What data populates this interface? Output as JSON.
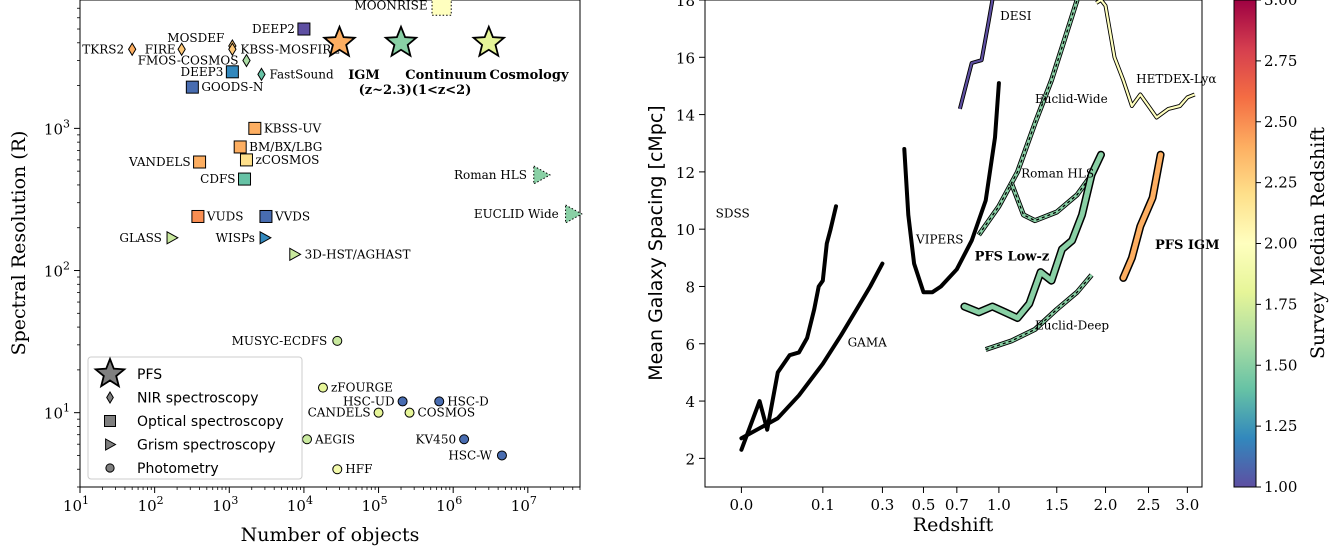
{
  "chart_data": [
    {
      "type": "scatter",
      "xlabel": "Number of objects",
      "ylabel": "Spectral Resolution (R)",
      "xscale": "log",
      "yscale": "log",
      "xlim": [
        10,
        50000000
      ],
      "ylim": [
        3,
        8000
      ],
      "xticks": [
        {
          "v": 10,
          "base": "10",
          "exp": "1"
        },
        {
          "v": 100,
          "base": "10",
          "exp": "2"
        },
        {
          "v": 1000,
          "base": "10",
          "exp": "3"
        },
        {
          "v": 10000,
          "base": "10",
          "exp": "4"
        },
        {
          "v": 100000,
          "base": "10",
          "exp": "5"
        },
        {
          "v": 1000000,
          "base": "10",
          "exp": "6"
        },
        {
          "v": 10000000,
          "base": "10",
          "exp": "7"
        }
      ],
      "yticks": [
        {
          "v": 10,
          "base": "10",
          "exp": "1"
        },
        {
          "v": 100,
          "base": "10",
          "exp": "2"
        },
        {
          "v": 1000,
          "base": "10",
          "exp": "3"
        }
      ],
      "colormap": {
        "name": "Spectral_r",
        "label": "Survey Median Redshift",
        "min": 1.0,
        "max": 3.0,
        "ticks": [
          "1.00",
          "1.25",
          "1.50",
          "1.75",
          "2.00",
          "2.25",
          "2.50",
          "2.75",
          "3.00"
        ]
      },
      "legend": {
        "position": "bottom-left",
        "entries": [
          {
            "marker": "star",
            "label": "PFS"
          },
          {
            "marker": "diamond",
            "label": "NIR spectroscopy"
          },
          {
            "marker": "square",
            "label": "Optical spectroscopy"
          },
          {
            "marker": "triangle",
            "label": "Grism spectroscopy"
          },
          {
            "marker": "circle",
            "label": "Photometry"
          }
        ]
      },
      "points": [
        {
          "label": "TKRS2",
          "n": 50,
          "r": 3600,
          "marker": "diamond",
          "z": 2.4,
          "anchor": "end",
          "dx": -8,
          "dy": 4
        },
        {
          "label": "FIRE",
          "n": 230,
          "r": 3600,
          "marker": "diamond",
          "z": 2.3,
          "anchor": "end",
          "dx": -6,
          "dy": 4
        },
        {
          "label": "MOSDEF",
          "n": 1100,
          "r": 3800,
          "marker": "diamond",
          "z": 2.3,
          "anchor": "end",
          "dx": -8,
          "dy": -4
        },
        {
          "label": "FMOS-COSMOS",
          "n": 1700,
          "r": 3000,
          "marker": "diamond",
          "z": 1.6,
          "anchor": "end",
          "dx": -8,
          "dy": 4
        },
        {
          "label": "KBSS-MOSFIRE",
          "n": 1100,
          "r": 3600,
          "marker": "diamond",
          "z": 2.3,
          "anchor": "start",
          "dx": 8,
          "dy": 4
        },
        {
          "label": "FastSound",
          "n": 2700,
          "r": 2400,
          "marker": "diamond",
          "z": 1.4,
          "anchor": "start",
          "dx": 8,
          "dy": 4
        },
        {
          "label": "DEEP2",
          "n": 10000,
          "r": 5000,
          "marker": "square",
          "z": 1.0,
          "anchor": "end",
          "dx": -9,
          "dy": 4
        },
        {
          "label": "DEEP3",
          "n": 1100,
          "r": 2500,
          "marker": "square",
          "z": 1.2,
          "anchor": "end",
          "dx": -9,
          "dy": 4
        },
        {
          "label": "GOODS-N",
          "n": 320,
          "r": 1950,
          "marker": "square",
          "z": 1.1,
          "anchor": "start",
          "dx": 9,
          "dy": 4
        },
        {
          "label": "KBSS-UV",
          "n": 2200,
          "r": 1000,
          "marker": "square",
          "z": 2.4,
          "anchor": "start",
          "dx": 9,
          "dy": 4
        },
        {
          "label": "BM/BX/LBG",
          "n": 1400,
          "r": 740,
          "marker": "square",
          "z": 2.4,
          "anchor": "start",
          "dx": 9,
          "dy": 4
        },
        {
          "label": "zCOSMOS",
          "n": 1700,
          "r": 600,
          "marker": "square",
          "z": 2.2,
          "anchor": "start",
          "dx": 9,
          "dy": 4
        },
        {
          "label": "VANDELS",
          "n": 400,
          "r": 580,
          "marker": "square",
          "z": 2.4,
          "anchor": "end",
          "dx": -9,
          "dy": 4
        },
        {
          "label": "CDFS",
          "n": 1600,
          "r": 440,
          "marker": "square",
          "z": 1.4,
          "anchor": "end",
          "dx": -9,
          "dy": 4
        },
        {
          "label": "VUDS",
          "n": 380,
          "r": 240,
          "marker": "square",
          "z": 2.5,
          "anchor": "start",
          "dx": 9,
          "dy": 4
        },
        {
          "label": "VVDS",
          "n": 3100,
          "r": 240,
          "marker": "square",
          "z": 1.1,
          "anchor": "start",
          "dx": 9,
          "dy": 4
        },
        {
          "label": "GLASS",
          "n": 170,
          "r": 170,
          "marker": "triangle",
          "z": 1.7,
          "anchor": "end",
          "dx": -10,
          "dy": 4
        },
        {
          "label": "WISPs",
          "n": 3000,
          "r": 170,
          "marker": "triangle",
          "z": 1.2,
          "anchor": "end",
          "dx": -10,
          "dy": 4
        },
        {
          "label": "3D-HST/AGHAST",
          "n": 7500,
          "r": 130,
          "marker": "triangle",
          "z": 1.7,
          "anchor": "start",
          "dx": 10,
          "dy": 4
        },
        {
          "label": "MUSYC-ECDFS",
          "n": 28000,
          "r": 32,
          "marker": "circle",
          "z": 1.7,
          "anchor": "end",
          "dx": -10,
          "dy": 4
        },
        {
          "label": "zFOURGE",
          "n": 18000,
          "r": 15,
          "marker": "circle",
          "z": 1.8,
          "anchor": "start",
          "dx": 8,
          "dy": 4
        },
        {
          "label": "HSC-UD",
          "n": 210000,
          "r": 12,
          "marker": "circle",
          "z": 1.1,
          "anchor": "end",
          "dx": -8,
          "dy": 4
        },
        {
          "label": "HSC-D",
          "n": 650000,
          "r": 12,
          "marker": "circle",
          "z": 1.1,
          "anchor": "start",
          "dx": 8,
          "dy": 4
        },
        {
          "label": "CANDELS",
          "n": 100000,
          "r": 10,
          "marker": "circle",
          "z": 1.8,
          "anchor": "end",
          "dx": -8,
          "dy": 4
        },
        {
          "label": "COSMOS",
          "n": 260000,
          "r": 10,
          "marker": "circle",
          "z": 1.8,
          "anchor": "start",
          "dx": 8,
          "dy": 4
        },
        {
          "label": "AEGIS",
          "n": 11000,
          "r": 6.5,
          "marker": "circle",
          "z": 1.7,
          "anchor": "start",
          "dx": 8,
          "dy": 4
        },
        {
          "label": "KV450",
          "n": 1400000,
          "r": 6.5,
          "marker": "circle",
          "z": 1.1,
          "anchor": "end",
          "dx": -8,
          "dy": 4
        },
        {
          "label": "HSC-W",
          "n": 4500000,
          "r": 5.0,
          "marker": "circle",
          "z": 1.1,
          "anchor": "end",
          "dx": -10,
          "dy": 4
        },
        {
          "label": "HFF",
          "n": 28000,
          "r": 4.0,
          "marker": "circle",
          "z": 1.9,
          "anchor": "start",
          "dx": 8,
          "dy": 4
        },
        {
          "label": "MOONRISE",
          "n": 700000,
          "r": 7300,
          "marker": "square-dotted",
          "z": 2.0,
          "anchor": "end",
          "dx": -14,
          "dy": 4
        },
        {
          "label": "Roman HLS",
          "n": 15000000,
          "r": 470,
          "marker": "triangle-dotted",
          "z": 1.5,
          "anchor": "end",
          "dx": -14,
          "dy": 4
        },
        {
          "label": "EUCLID Wide",
          "n": 40000000,
          "r": 250,
          "marker": "triangle-dotted",
          "z": 1.5,
          "anchor": "end",
          "dx": -14,
          "dy": 4
        }
      ],
      "pfs": [
        {
          "n": 30000,
          "r": 4000,
          "z": 2.4
        },
        {
          "n": 200000,
          "r": 4000,
          "z": 1.5
        },
        {
          "n": 3000000,
          "r": 4000,
          "z": 1.8
        }
      ],
      "pfs_labels": [
        "IGM",
        "(z~2.3)(1<z<2)",
        "Continuum",
        "Cosmology"
      ]
    },
    {
      "type": "line",
      "xlabel": "Redshift",
      "ylabel": "Mean Galaxy Spacing [cMpc]",
      "xscale": "sqrt",
      "xlim": [
        -0.02,
        3.2
      ],
      "ylim": [
        1,
        18
      ],
      "xticks": [
        "0.0",
        "0.1",
        "0.3",
        "0.5",
        "0.7",
        "1.0",
        "1.5",
        "2.0",
        "2.5",
        "3.0"
      ],
      "xtick_values": [
        0.0,
        0.1,
        0.3,
        0.5,
        0.7,
        1.0,
        1.5,
        2.0,
        2.5,
        3.0
      ],
      "yticks": [
        "2",
        "4",
        "6",
        "8",
        "10",
        "12",
        "14",
        "16",
        "18"
      ],
      "ytick_values": [
        2,
        4,
        6,
        8,
        10,
        12,
        14,
        16,
        18
      ],
      "series": [
        {
          "name": "SDSS",
          "style": "black",
          "points": [
            [
              0.0,
              2.3
            ],
            [
              0.005,
              4.0
            ],
            [
              0.01,
              3.0
            ],
            [
              0.02,
              5.0
            ],
            [
              0.035,
              5.6
            ],
            [
              0.05,
              5.7
            ],
            [
              0.065,
              6.2
            ],
            [
              0.08,
              7.2
            ],
            [
              0.09,
              8.0
            ],
            [
              0.1,
              8.2
            ],
            [
              0.11,
              9.5
            ],
            [
              0.12,
              10.0
            ],
            [
              0.135,
              10.8
            ]
          ]
        },
        {
          "name": "GAMA",
          "style": "black",
          "points": [
            [
              0.0,
              2.7
            ],
            [
              0.02,
              3.4
            ],
            [
              0.05,
              4.2
            ],
            [
              0.1,
              5.3
            ],
            [
              0.15,
              6.3
            ],
            [
              0.2,
              7.2
            ],
            [
              0.25,
              8.0
            ],
            [
              0.3,
              8.8
            ]
          ]
        },
        {
          "name": "VIPERS",
          "style": "black",
          "points": [
            [
              0.4,
              12.8
            ],
            [
              0.42,
              10.5
            ],
            [
              0.45,
              8.8
            ],
            [
              0.5,
              7.8
            ],
            [
              0.55,
              7.8
            ],
            [
              0.6,
              8.0
            ],
            [
              0.7,
              8.6
            ],
            [
              0.8,
              9.6
            ],
            [
              0.9,
              11.0
            ],
            [
              0.97,
              13.2
            ],
            [
              1.0,
              15.1
            ]
          ]
        },
        {
          "name": "DESI",
          "style": "color",
          "z": 1.0,
          "points": [
            [
              0.72,
              14.2
            ],
            [
              0.8,
              15.8
            ],
            [
              0.87,
              15.9
            ],
            [
              0.92,
              17.2
            ],
            [
              0.95,
              18.0
            ]
          ]
        },
        {
          "name": "HETDEX-Lyα",
          "style": "color",
          "z": 2.0,
          "points": [
            [
              1.9,
              17.9
            ],
            [
              1.95,
              18.0
            ],
            [
              2.0,
              17.8
            ],
            [
              2.1,
              16.0
            ],
            [
              2.2,
              15.2
            ],
            [
              2.3,
              14.3
            ],
            [
              2.4,
              14.7
            ],
            [
              2.5,
              14.3
            ],
            [
              2.6,
              13.9
            ],
            [
              2.75,
              14.2
            ],
            [
              2.9,
              14.3
            ],
            [
              3.0,
              14.6
            ],
            [
              3.1,
              14.7
            ]
          ]
        },
        {
          "name": "Euclid-Wide",
          "style": "dashed",
          "z": 1.5,
          "points": [
            [
              0.85,
              9.8
            ],
            [
              1.0,
              10.8
            ],
            [
              1.15,
              12.0
            ],
            [
              1.3,
              13.7
            ],
            [
              1.45,
              15.2
            ],
            [
              1.6,
              16.9
            ],
            [
              1.7,
              18.0
            ]
          ]
        },
        {
          "name": "Roman HLS",
          "style": "dashed",
          "z": 1.5,
          "points": [
            [
              1.1,
              11.6
            ],
            [
              1.2,
              10.5
            ],
            [
              1.3,
              10.3
            ],
            [
              1.5,
              10.6
            ],
            [
              1.7,
              11.2
            ],
            [
              1.85,
              11.9
            ]
          ]
        },
        {
          "name": "Euclid-Deep",
          "style": "dashed",
          "z": 1.5,
          "points": [
            [
              0.9,
              5.8
            ],
            [
              1.1,
              6.1
            ],
            [
              1.3,
              6.5
            ],
            [
              1.5,
              7.2
            ],
            [
              1.7,
              7.8
            ],
            [
              1.85,
              8.4
            ]
          ]
        },
        {
          "name": "PFS Low-z",
          "style": "thick",
          "z": 1.5,
          "points": [
            [
              0.75,
              7.3
            ],
            [
              0.85,
              7.1
            ],
            [
              0.95,
              7.3
            ],
            [
              1.05,
              7.1
            ],
            [
              1.15,
              6.9
            ],
            [
              1.25,
              7.4
            ],
            [
              1.35,
              8.5
            ],
            [
              1.45,
              8.2
            ],
            [
              1.55,
              9.3
            ],
            [
              1.65,
              9.6
            ],
            [
              1.75,
              10.5
            ],
            [
              1.85,
              11.9
            ],
            [
              1.95,
              12.6
            ]
          ]
        },
        {
          "name": "PFS IGM",
          "style": "thick",
          "z": 2.4,
          "points": [
            [
              2.2,
              8.3
            ],
            [
              2.3,
              9.0
            ],
            [
              2.4,
              10.1
            ],
            [
              2.55,
              11.1
            ],
            [
              2.65,
              12.6
            ]
          ]
        }
      ],
      "line_labels": [
        {
          "text": "SDSS",
          "x": -0.01,
          "y": 10.4,
          "anchor": "start",
          "bold": false
        },
        {
          "text": "GAMA",
          "x": 0.17,
          "y": 5.9,
          "anchor": "start",
          "bold": false
        },
        {
          "text": "VIPERS",
          "x": 0.46,
          "y": 9.5,
          "anchor": "start",
          "bold": false
        },
        {
          "text": "DESI",
          "x": 1.01,
          "y": 17.3,
          "anchor": "start",
          "bold": false
        },
        {
          "text": "Euclid-Wide",
          "x": 1.3,
          "y": 14.4,
          "anchor": "start",
          "bold": false
        },
        {
          "text": "Roman HLS",
          "x": 1.18,
          "y": 11.8,
          "anchor": "start",
          "bold": false
        },
        {
          "text": "Euclid-Deep",
          "x": 1.3,
          "y": 6.5,
          "anchor": "start",
          "bold": false
        },
        {
          "text": "HETDEX-Lyα",
          "x": 2.35,
          "y": 15.1,
          "anchor": "start",
          "bold": false
        },
        {
          "text": "PFS Low-z",
          "x": 0.82,
          "y": 8.9,
          "anchor": "start",
          "bold": true
        },
        {
          "text": "PFS IGM",
          "x": 2.58,
          "y": 9.3,
          "anchor": "start",
          "bold": true
        }
      ]
    }
  ]
}
